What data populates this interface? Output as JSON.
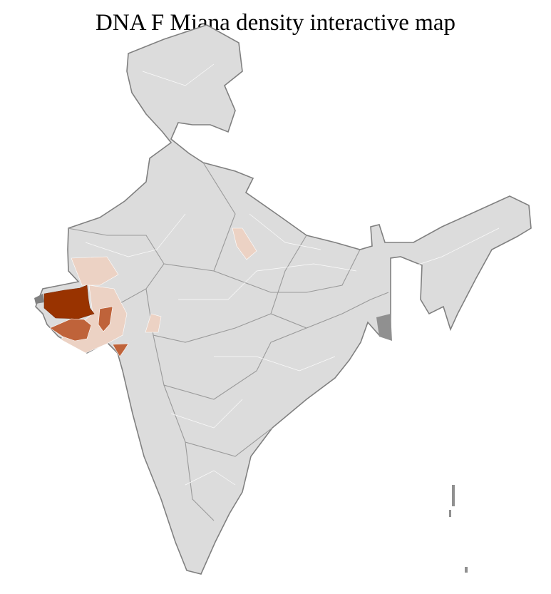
{
  "title": "DNA F Miana density interactive map",
  "map": {
    "region": "India districts",
    "base_color": "#dcdcdc",
    "border_color": "#808080",
    "district_line_color": "#ffffff",
    "scale_colors": {
      "high": "#993300",
      "medium": "#bf633a",
      "low": "#ecd2c4"
    }
  }
}
